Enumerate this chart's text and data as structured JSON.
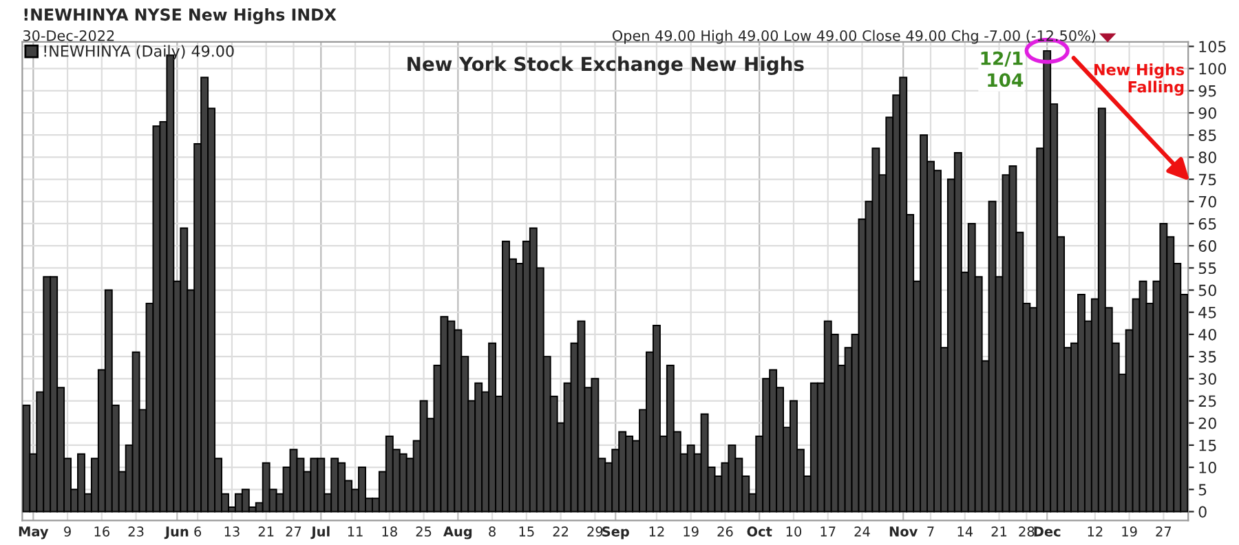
{
  "chart_data": {
    "type": "bar",
    "title": "!NEWHINYA NYSE New Highs INDX",
    "subtitle": "30-Dec-2022",
    "annotations": [
      "Open 49.00 High 49.00 Low 49.00 Close 49.00 Chg -7.00 (-12.50%)",
      "New York Stock Exchange New Highs",
      {
        "text": "12/1\n104",
        "x": "Dec",
        "y": 104
      },
      "New Highs\nFalling"
    ],
    "categories": [
      null,
      "May",
      null,
      null,
      null,
      null,
      "9",
      null,
      null,
      null,
      null,
      "16",
      null,
      null,
      null,
      null,
      "23",
      null,
      null,
      null,
      null,
      null,
      "Jun",
      null,
      null,
      "6",
      null,
      null,
      null,
      null,
      "13",
      null,
      null,
      null,
      null,
      "21",
      null,
      null,
      null,
      "27",
      null,
      null,
      null,
      "Jul",
      null,
      null,
      null,
      null,
      "11",
      null,
      null,
      null,
      null,
      "18",
      null,
      null,
      null,
      null,
      "25",
      null,
      null,
      null,
      null,
      "Aug",
      null,
      null,
      null,
      null,
      "8",
      null,
      null,
      null,
      null,
      "15",
      null,
      null,
      null,
      null,
      "22",
      null,
      null,
      null,
      null,
      "29",
      null,
      null,
      "Sep",
      null,
      null,
      null,
      null,
      null,
      "12",
      null,
      null,
      null,
      null,
      "19",
      null,
      null,
      null,
      null,
      "26",
      null,
      null,
      null,
      null,
      "Oct",
      null,
      null,
      null,
      null,
      "10",
      null,
      null,
      null,
      null,
      "17",
      null,
      null,
      null,
      null,
      "24",
      null,
      null,
      null,
      null,
      null,
      "Nov",
      null,
      null,
      null,
      "7",
      null,
      null,
      null,
      null,
      "14",
      null,
      null,
      null,
      null,
      "21",
      null,
      null,
      null,
      "28",
      null,
      null,
      "Dec",
      null,
      null,
      null,
      null,
      null,
      null,
      "12",
      null,
      null,
      null,
      null,
      "19",
      null,
      null,
      null,
      null,
      "27",
      null,
      null,
      null
    ],
    "series": [
      {
        "name": "!NEWHINYA (Daily) 49.00",
        "color": "#404040",
        "values": [
          24,
          13,
          27,
          53,
          53,
          28,
          12,
          5,
          13,
          4,
          12,
          32,
          50,
          24,
          9,
          15,
          36,
          23,
          47,
          87,
          88,
          103,
          52,
          64,
          50,
          83,
          98,
          91,
          12,
          4,
          1,
          4,
          5,
          1,
          2,
          11,
          5,
          4,
          10,
          14,
          12,
          9,
          12,
          12,
          4,
          12,
          11,
          7,
          5,
          10,
          3,
          3,
          9,
          17,
          14,
          13,
          12,
          16,
          25,
          21,
          33,
          44,
          43,
          41,
          35,
          25,
          29,
          27,
          38,
          26,
          61,
          57,
          56,
          61,
          64,
          55,
          35,
          26,
          20,
          29,
          38,
          43,
          28,
          30,
          12,
          11,
          14,
          18,
          17,
          16,
          23,
          36,
          42,
          17,
          33,
          18,
          13,
          15,
          13,
          22,
          10,
          8,
          11,
          15,
          12,
          8,
          4,
          17,
          30,
          32,
          28,
          19,
          25,
          14,
          8,
          29,
          29,
          43,
          40,
          33,
          37,
          40,
          66,
          70,
          82,
          76,
          89,
          94,
          98,
          67,
          52,
          85,
          79,
          77,
          37,
          75,
          81,
          54,
          65,
          53,
          34,
          70,
          53,
          76,
          78,
          63,
          47,
          46,
          82,
          104,
          92,
          62,
          37,
          38,
          49,
          43,
          48,
          91,
          46,
          38,
          31,
          41,
          48,
          52,
          47,
          52,
          65,
          62,
          56,
          49
        ]
      }
    ],
    "ylim": [
      -2,
      106
    ],
    "yticks": [
      0,
      5,
      10,
      15,
      20,
      25,
      30,
      35,
      40,
      45,
      50,
      55,
      60,
      65,
      70,
      75,
      80,
      85,
      90,
      95,
      100,
      105
    ],
    "grid": true,
    "legend": "top left"
  }
}
